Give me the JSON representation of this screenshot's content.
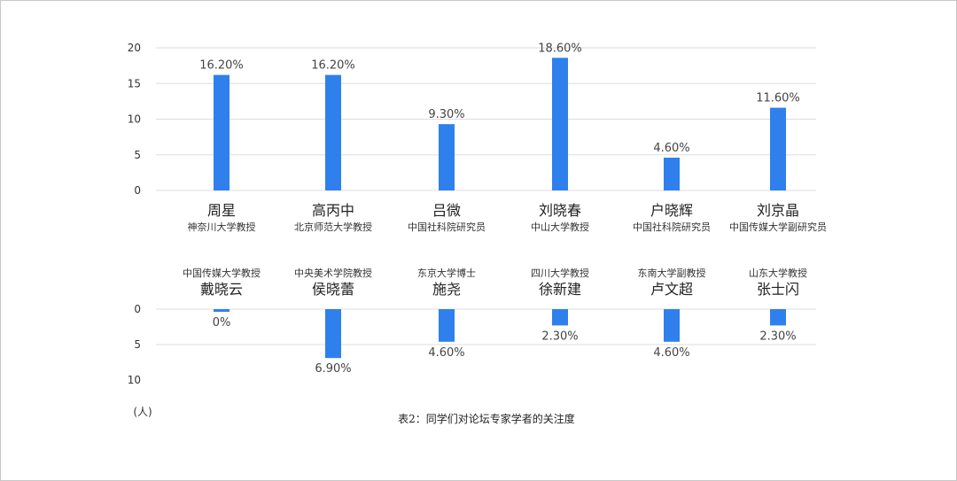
{
  "chart_data": {
    "type": "bar",
    "caption": "表2：同学们对论坛专家学者的关注度",
    "unit_label": "(人)",
    "colors": {
      "bar": "#2f80ed",
      "grid": "#dddddd"
    },
    "grid": true,
    "top": {
      "yticks": [
        "20",
        "15",
        "10",
        "5",
        "0"
      ],
      "ylim": [
        0,
        20
      ],
      "items": [
        {
          "name": "周星",
          "affiliation": "神奈川大学教授",
          "value": 16.2,
          "label": "16.20%"
        },
        {
          "name": "高丙中",
          "affiliation": "北京师范大学教授",
          "value": 16.2,
          "label": "16.20%"
        },
        {
          "name": "吕微",
          "affiliation": "中国社科院研究员",
          "value": 9.3,
          "label": "9.30%"
        },
        {
          "name": "刘晓春",
          "affiliation": "中山大学教授",
          "value": 18.6,
          "label": "18.60%"
        },
        {
          "name": "户晓辉",
          "affiliation": "中国社科院研究员",
          "value": 4.6,
          "label": "4.60%"
        },
        {
          "name": "刘京晶",
          "affiliation": "中国传媒大学副研究员",
          "value": 11.6,
          "label": "11.60%"
        }
      ]
    },
    "bottom": {
      "yticks": [
        "0",
        "5",
        "10"
      ],
      "ylim": [
        0,
        10
      ],
      "items": [
        {
          "name": "戴晓云",
          "affiliation": "中国传媒大学教授",
          "value": 0,
          "label": "0%"
        },
        {
          "name": "侯晓蕾",
          "affiliation": "中央美术学院教授",
          "value": 6.9,
          "label": "6.90%"
        },
        {
          "name": "施尧",
          "affiliation": "东京大学博士",
          "value": 4.6,
          "label": "4.60%"
        },
        {
          "name": "徐新建",
          "affiliation": "四川大学教授",
          "value": 2.3,
          "label": "2.30%"
        },
        {
          "name": "卢文超",
          "affiliation": "东南大学副教授",
          "value": 4.6,
          "label": "4.60%"
        },
        {
          "name": "张士闪",
          "affiliation": "山东大学教授",
          "value": 2.3,
          "label": "2.30%"
        }
      ]
    }
  }
}
